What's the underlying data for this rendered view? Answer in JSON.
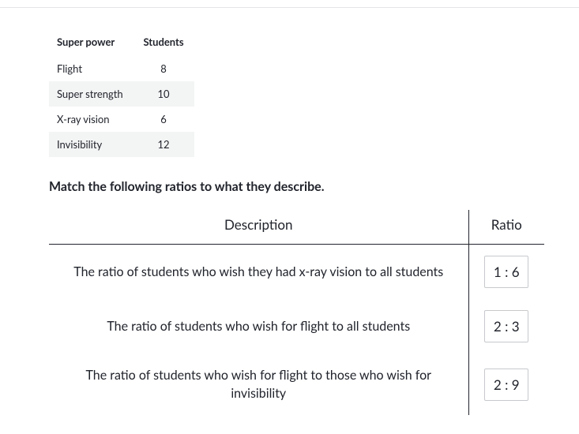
{
  "topBorderColor": "#e4e5e8",
  "dataTable": {
    "columns": [
      "Super power",
      "Students"
    ],
    "rows": [
      {
        "power": "Flight",
        "count": 8,
        "alt": false
      },
      {
        "power": "Super strength",
        "count": 10,
        "alt": true
      },
      {
        "power": "X-ray vision",
        "count": 6,
        "alt": false
      },
      {
        "power": "Invisibility",
        "count": 12,
        "alt": true
      }
    ],
    "altBg": "#f3f4f4",
    "fontSize": 13
  },
  "instruction": "Match the following ratios to what they describe.",
  "matchTable": {
    "headers": {
      "description": "Description",
      "ratio": "Ratio"
    },
    "borderColor": "#21242c",
    "boxBorderColor": "#c7c9cc",
    "fontSize": 16,
    "rows": [
      {
        "description": "The ratio of students who wish they had x-ray vision to all students",
        "ratio": "1 : 6"
      },
      {
        "description": "The ratio of students who wish for flight to all students",
        "ratio": "2 : 3"
      },
      {
        "description": "The ratio of students who wish for flight to those who wish for invisibility",
        "ratio": "2 : 9"
      }
    ]
  }
}
